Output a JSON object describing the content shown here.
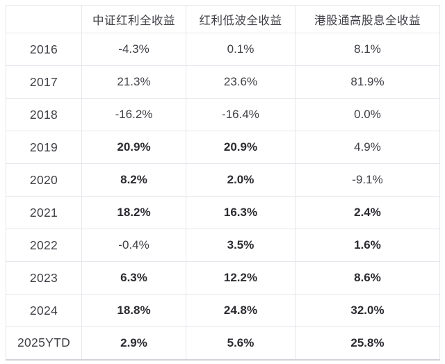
{
  "colors": {
    "border": "#e6e6ec",
    "outer_bottom_border": "#d2d2d9",
    "text": "#3f3f46",
    "bold_text": "#2b2b31",
    "background": "#ffffff"
  },
  "table": {
    "columns": [
      "",
      "中证红利全收益",
      "红利低波全收益",
      "港股通高股息全收益"
    ],
    "rows": [
      {
        "year": "2016",
        "values": [
          "-4.3%",
          "0.1%",
          "8.1%"
        ],
        "bold": [
          false,
          false,
          false
        ]
      },
      {
        "year": "2017",
        "values": [
          "21.3%",
          "23.6%",
          "81.9%"
        ],
        "bold": [
          false,
          false,
          false
        ]
      },
      {
        "year": "2018",
        "values": [
          "-16.2%",
          "-16.4%",
          "0.0%"
        ],
        "bold": [
          false,
          false,
          false
        ]
      },
      {
        "year": "2019",
        "values": [
          "20.9%",
          "20.9%",
          "4.9%"
        ],
        "bold": [
          true,
          true,
          false
        ]
      },
      {
        "year": "2020",
        "values": [
          "8.2%",
          "2.0%",
          "-9.1%"
        ],
        "bold": [
          true,
          true,
          false
        ]
      },
      {
        "year": "2021",
        "values": [
          "18.2%",
          "16.3%",
          "2.4%"
        ],
        "bold": [
          true,
          true,
          true
        ]
      },
      {
        "year": "2022",
        "values": [
          "-0.4%",
          "3.5%",
          "1.6%"
        ],
        "bold": [
          false,
          true,
          true
        ]
      },
      {
        "year": "2023",
        "values": [
          "6.3%",
          "12.2%",
          "8.6%"
        ],
        "bold": [
          true,
          true,
          true
        ]
      },
      {
        "year": "2024",
        "values": [
          "18.8%",
          "24.8%",
          "32.0%"
        ],
        "bold": [
          true,
          true,
          true
        ]
      },
      {
        "year": "2025YTD",
        "values": [
          "2.9%",
          "5.6%",
          "25.8%"
        ],
        "bold": [
          true,
          true,
          true
        ]
      }
    ]
  }
}
